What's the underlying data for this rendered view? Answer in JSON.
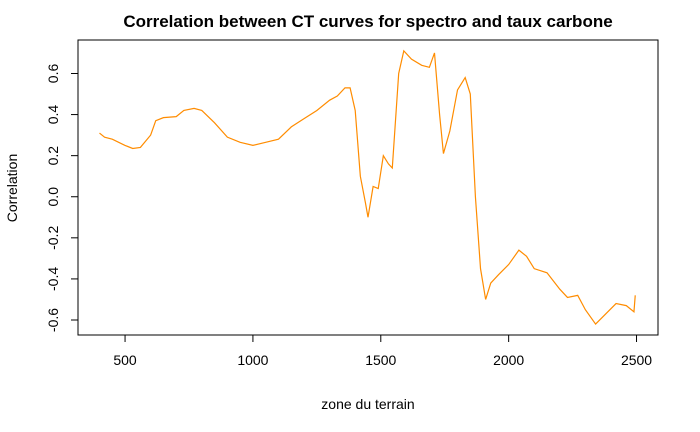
{
  "chart_data": {
    "type": "line",
    "title": "Correlation between CT curves for spectro and taux carbone",
    "x_label": "zone du terrain",
    "y_label": "Correlation",
    "x": [
      400,
      420,
      450,
      500,
      530,
      560,
      600,
      620,
      650,
      700,
      730,
      770,
      800,
      850,
      900,
      950,
      1000,
      1050,
      1100,
      1150,
      1200,
      1250,
      1300,
      1330,
      1360,
      1380,
      1400,
      1420,
      1440,
      1450,
      1470,
      1490,
      1510,
      1530,
      1545,
      1570,
      1590,
      1620,
      1660,
      1690,
      1710,
      1730,
      1745,
      1770,
      1800,
      1830,
      1850,
      1870,
      1890,
      1910,
      1930,
      1960,
      2000,
      2040,
      2070,
      2100,
      2150,
      2200,
      2230,
      2270,
      2300,
      2340,
      2380,
      2420,
      2460,
      2490,
      2495
    ],
    "series": [
      {
        "name": "Correlation",
        "color": "#ff8c00",
        "values": [
          0.31,
          0.29,
          0.28,
          0.25,
          0.235,
          0.24,
          0.3,
          0.37,
          0.385,
          0.39,
          0.42,
          0.43,
          0.42,
          0.36,
          0.29,
          0.265,
          0.25,
          0.265,
          0.28,
          0.34,
          0.38,
          0.42,
          0.47,
          0.49,
          0.53,
          0.53,
          0.42,
          0.1,
          -0.03,
          -0.1,
          0.05,
          0.04,
          0.2,
          0.16,
          0.14,
          0.6,
          0.71,
          0.67,
          0.64,
          0.63,
          0.7,
          0.4,
          0.21,
          0.32,
          0.52,
          0.58,
          0.5,
          0.0,
          -0.35,
          -0.5,
          -0.42,
          -0.38,
          -0.33,
          -0.26,
          -0.29,
          -0.35,
          -0.37,
          -0.45,
          -0.49,
          -0.48,
          -0.55,
          -0.62,
          -0.57,
          -0.52,
          -0.53,
          -0.56,
          -0.48
        ]
      }
    ],
    "xlim": [
      316,
      2584
    ],
    "ylim": [
      -0.673,
      0.763
    ],
    "xticks": [
      500,
      1000,
      1500,
      2000,
      2500
    ],
    "yticks": [
      -0.6,
      -0.4,
      -0.2,
      0.0,
      0.2,
      0.4,
      0.6
    ]
  }
}
